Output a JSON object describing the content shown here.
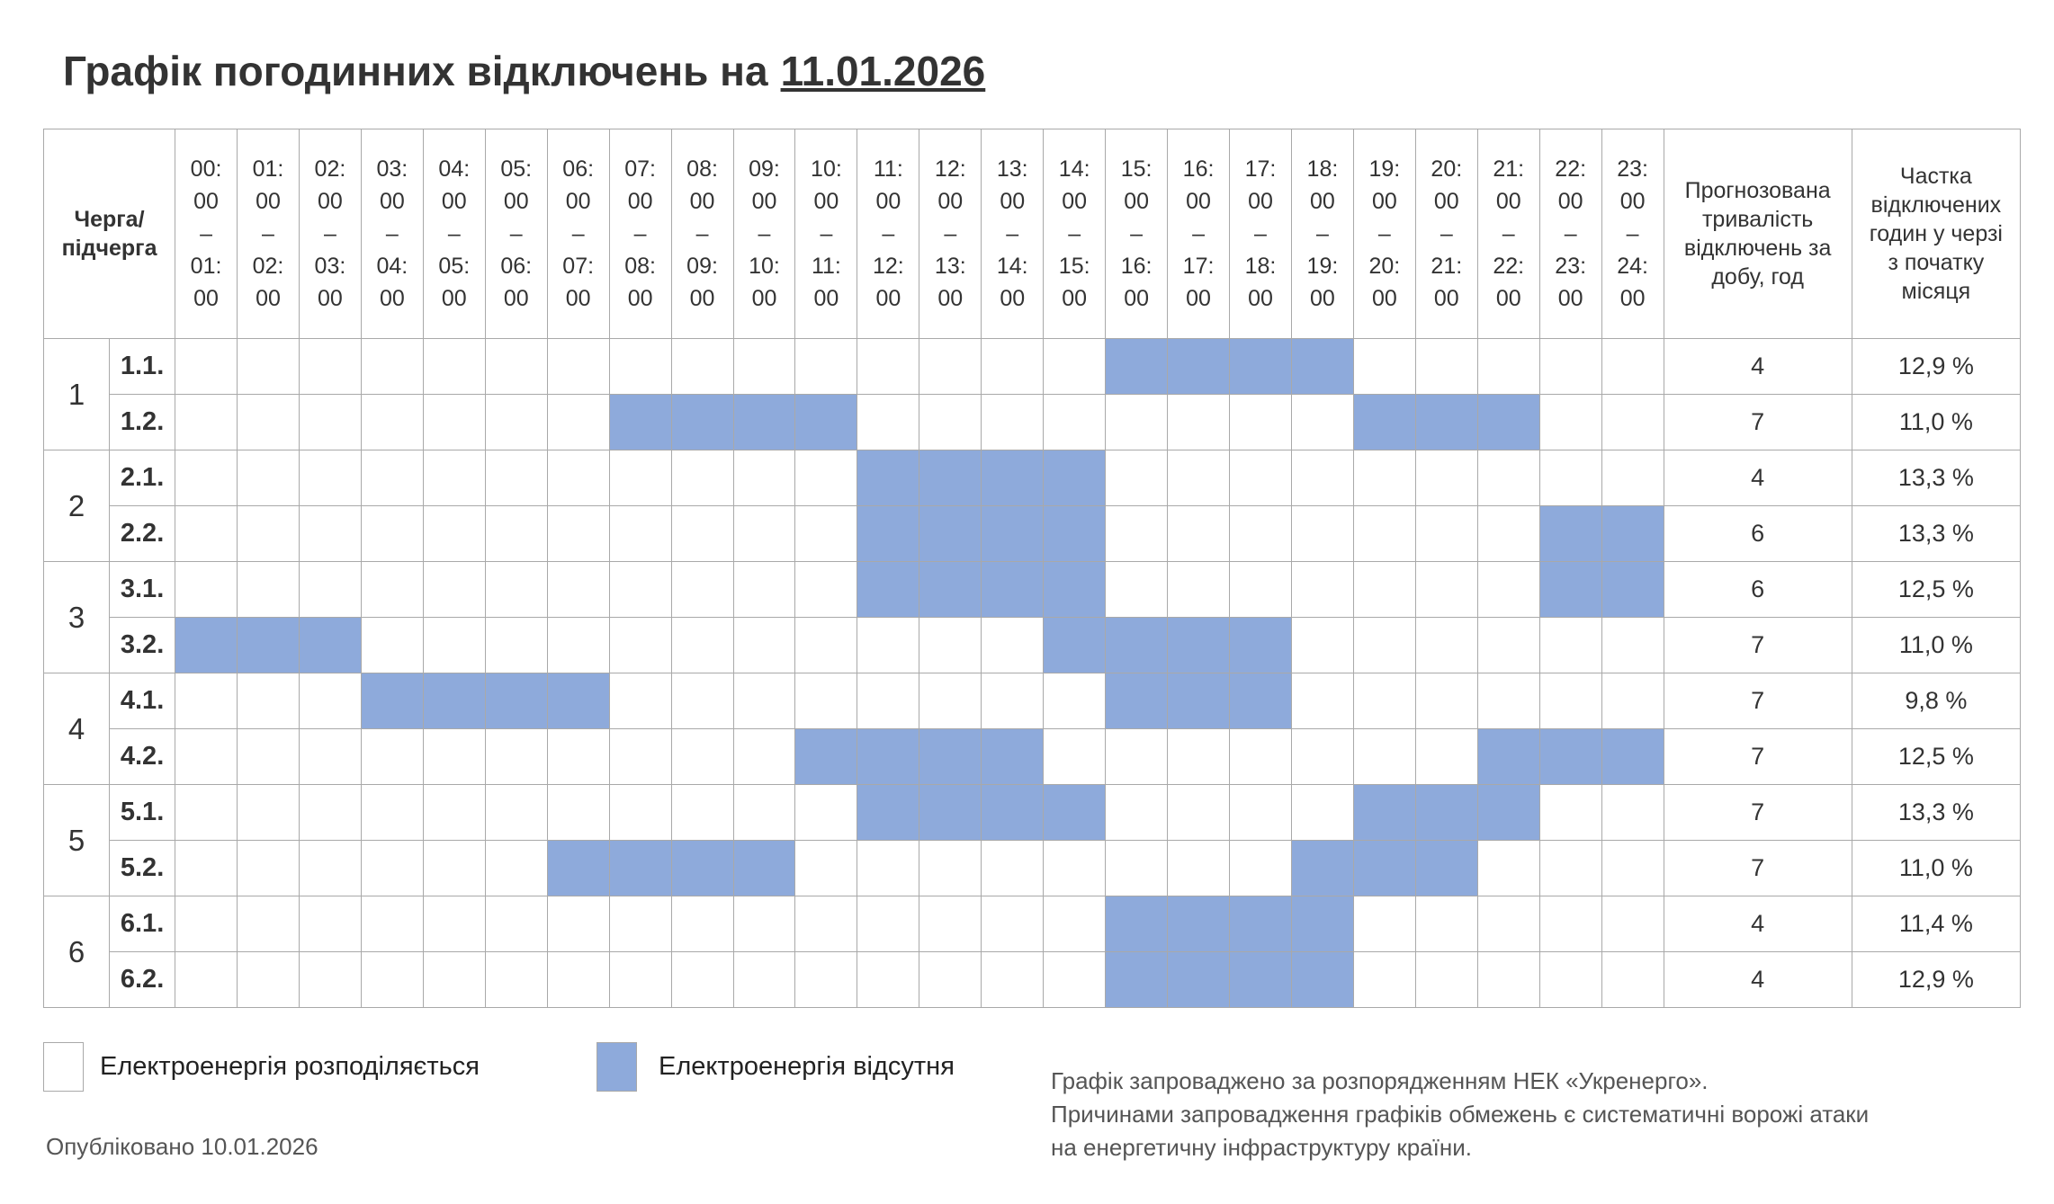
{
  "header": {
    "title_prefix": "Графік погодинних відключень на",
    "title_date": "11.01.2026"
  },
  "table": {
    "columns": {
      "queue": "Черга/ підчерга",
      "hours": [
        [
          "00:",
          "00",
          "–",
          "01:",
          "00"
        ],
        [
          "01:",
          "00",
          "–",
          "02:",
          "00"
        ],
        [
          "02:",
          "00",
          "–",
          "03:",
          "00"
        ],
        [
          "03:",
          "00",
          "–",
          "04:",
          "00"
        ],
        [
          "04:",
          "00",
          "–",
          "05:",
          "00"
        ],
        [
          "05:",
          "00",
          "–",
          "06:",
          "00"
        ],
        [
          "06:",
          "00",
          "–",
          "07:",
          "00"
        ],
        [
          "07:",
          "00",
          "–",
          "08:",
          "00"
        ],
        [
          "08:",
          "00",
          "–",
          "09:",
          "00"
        ],
        [
          "09:",
          "00",
          "–",
          "10:",
          "00"
        ],
        [
          "10:",
          "00",
          "–",
          "11:",
          "00"
        ],
        [
          "11:",
          "00",
          "–",
          "12:",
          "00"
        ],
        [
          "12:",
          "00",
          "–",
          "13:",
          "00"
        ],
        [
          "13:",
          "00",
          "–",
          "14:",
          "00"
        ],
        [
          "14:",
          "00",
          "–",
          "15:",
          "00"
        ],
        [
          "15:",
          "00",
          "–",
          "16:",
          "00"
        ],
        [
          "16:",
          "00",
          "–",
          "17:",
          "00"
        ],
        [
          "17:",
          "00",
          "–",
          "18:",
          "00"
        ],
        [
          "18:",
          "00",
          "–",
          "19:",
          "00"
        ],
        [
          "19:",
          "00",
          "–",
          "20:",
          "00"
        ],
        [
          "20:",
          "00",
          "–",
          "21:",
          "00"
        ],
        [
          "21:",
          "00",
          "–",
          "22:",
          "00"
        ],
        [
          "22:",
          "00",
          "–",
          "23:",
          "00"
        ],
        [
          "23:",
          "00",
          "–",
          "24:",
          "00"
        ]
      ],
      "duration": "Прогнозована тривалість відключень за добу, год",
      "share": "Частка відключених годин у черзі з початку місяця"
    },
    "groups": [
      {
        "queue": "1",
        "rows": [
          {
            "subqueue": "1.1.",
            "outage": [
              0,
              0,
              0,
              0,
              0,
              0,
              0,
              0,
              0,
              0,
              0,
              0,
              0,
              0,
              0,
              1,
              1,
              1,
              1,
              0,
              0,
              0,
              0,
              0
            ],
            "duration": 4,
            "share": "12,9 %"
          },
          {
            "subqueue": "1.2.",
            "outage": [
              0,
              0,
              0,
              0,
              0,
              0,
              0,
              1,
              1,
              1,
              1,
              0,
              0,
              0,
              0,
              0,
              0,
              0,
              0,
              1,
              1,
              1,
              0,
              0
            ],
            "duration": 7,
            "share": "11,0 %"
          }
        ]
      },
      {
        "queue": "2",
        "rows": [
          {
            "subqueue": "2.1.",
            "outage": [
              0,
              0,
              0,
              0,
              0,
              0,
              0,
              0,
              0,
              0,
              0,
              1,
              1,
              1,
              1,
              0,
              0,
              0,
              0,
              0,
              0,
              0,
              0,
              0
            ],
            "duration": 4,
            "share": "13,3 %"
          },
          {
            "subqueue": "2.2.",
            "outage": [
              0,
              0,
              0,
              0,
              0,
              0,
              0,
              0,
              0,
              0,
              0,
              1,
              1,
              1,
              1,
              0,
              0,
              0,
              0,
              0,
              0,
              0,
              1,
              1
            ],
            "duration": 6,
            "share": "13,3 %"
          }
        ]
      },
      {
        "queue": "3",
        "rows": [
          {
            "subqueue": "3.1.",
            "outage": [
              0,
              0,
              0,
              0,
              0,
              0,
              0,
              0,
              0,
              0,
              0,
              1,
              1,
              1,
              1,
              0,
              0,
              0,
              0,
              0,
              0,
              0,
              1,
              1
            ],
            "duration": 6,
            "share": "12,5 %"
          },
          {
            "subqueue": "3.2.",
            "outage": [
              1,
              1,
              1,
              0,
              0,
              0,
              0,
              0,
              0,
              0,
              0,
              0,
              0,
              0,
              1,
              1,
              1,
              1,
              0,
              0,
              0,
              0,
              0,
              0
            ],
            "duration": 7,
            "share": "11,0 %"
          }
        ]
      },
      {
        "queue": "4",
        "rows": [
          {
            "subqueue": "4.1.",
            "outage": [
              0,
              0,
              0,
              1,
              1,
              1,
              1,
              0,
              0,
              0,
              0,
              0,
              0,
              0,
              0,
              1,
              1,
              1,
              0,
              0,
              0,
              0,
              0,
              0
            ],
            "duration": 7,
            "share": "9,8 %"
          },
          {
            "subqueue": "4.2.",
            "outage": [
              0,
              0,
              0,
              0,
              0,
              0,
              0,
              0,
              0,
              0,
              1,
              1,
              1,
              1,
              0,
              0,
              0,
              0,
              0,
              0,
              0,
              1,
              1,
              1
            ],
            "duration": 7,
            "share": "12,5 %"
          }
        ]
      },
      {
        "queue": "5",
        "rows": [
          {
            "subqueue": "5.1.",
            "outage": [
              0,
              0,
              0,
              0,
              0,
              0,
              0,
              0,
              0,
              0,
              0,
              1,
              1,
              1,
              1,
              0,
              0,
              0,
              0,
              1,
              1,
              1,
              0,
              0
            ],
            "duration": 7,
            "share": "13,3 %"
          },
          {
            "subqueue": "5.2.",
            "outage": [
              0,
              0,
              0,
              0,
              0,
              0,
              1,
              1,
              1,
              1,
              0,
              0,
              0,
              0,
              0,
              0,
              0,
              0,
              1,
              1,
              1,
              0,
              0,
              0
            ],
            "duration": 7,
            "share": "11,0 %"
          }
        ]
      },
      {
        "queue": "6",
        "rows": [
          {
            "subqueue": "6.1.",
            "outage": [
              0,
              0,
              0,
              0,
              0,
              0,
              0,
              0,
              0,
              0,
              0,
              0,
              0,
              0,
              0,
              1,
              1,
              1,
              1,
              0,
              0,
              0,
              0,
              0
            ],
            "duration": 4,
            "share": "11,4 %"
          },
          {
            "subqueue": "6.2.",
            "outage": [
              0,
              0,
              0,
              0,
              0,
              0,
              0,
              0,
              0,
              0,
              0,
              0,
              0,
              0,
              0,
              1,
              1,
              1,
              1,
              0,
              0,
              0,
              0,
              0
            ],
            "duration": 4,
            "share": "12,9 %"
          }
        ]
      }
    ]
  },
  "legend": [
    {
      "label": "Електроенергія розподіляється"
    },
    {
      "label": "Електроенергія відсутня"
    }
  ],
  "footer": {
    "published": "Опубліковано 10.01.2026",
    "note": [
      "Графік запроваджено за розпорядженням НЕК «Укренерго».",
      "Причинами запровадження графіків обмежень є систематичні ворожі атаки",
      "на енергетичну інфраструктуру країни."
    ]
  }
}
